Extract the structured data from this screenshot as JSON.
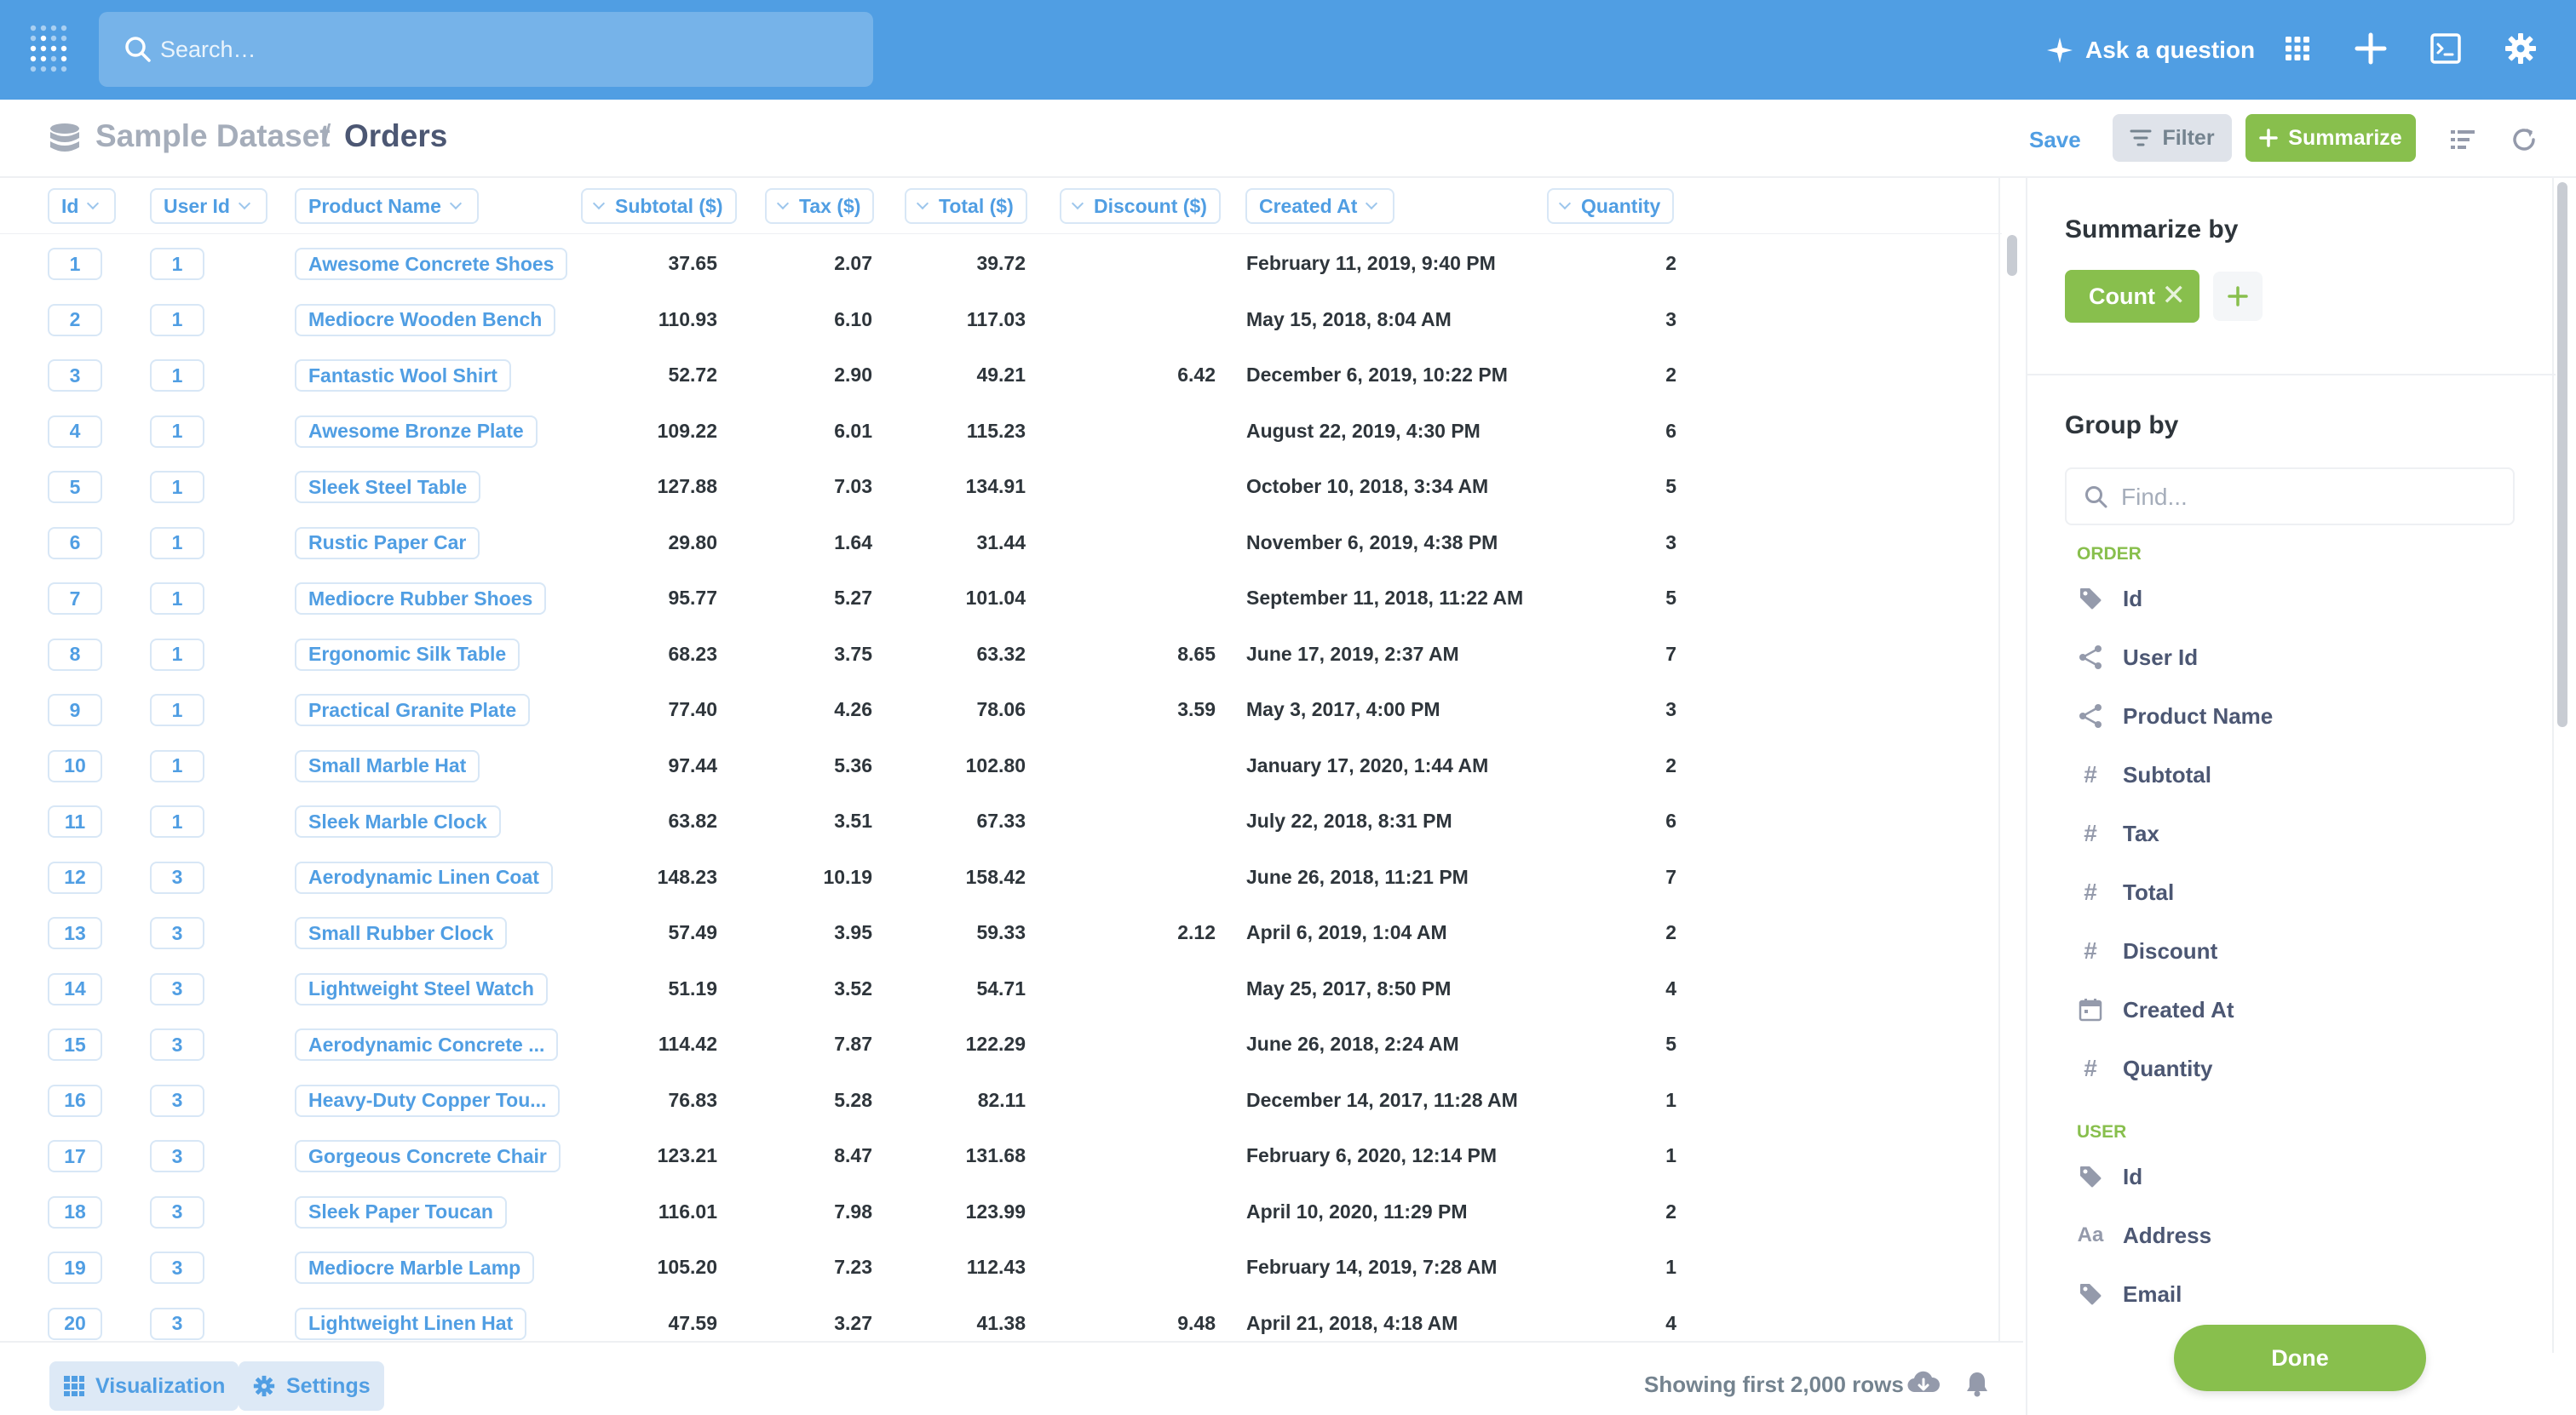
{
  "topnav": {
    "search_placeholder": "Search…",
    "ask_label": "Ask a question"
  },
  "header": {
    "database": "Sample Dataset",
    "separator": "/",
    "table": "Orders",
    "save_label": "Save",
    "filter_label": "Filter",
    "summarize_label": "Summarize"
  },
  "columns": {
    "id": "Id",
    "user_id": "User Id",
    "product_name": "Product Name",
    "subtotal": "Subtotal ($)",
    "tax": "Tax ($)",
    "total": "Total ($)",
    "discount": "Discount ($)",
    "created_at": "Created At",
    "quantity": "Quantity"
  },
  "rows": [
    {
      "id": "1",
      "user_id": "1",
      "product": "Awesome Concrete Shoes",
      "subtotal": "37.65",
      "tax": "2.07",
      "total": "39.72",
      "discount": "",
      "created": "February 11, 2019, 9:40 PM",
      "qty": "2"
    },
    {
      "id": "2",
      "user_id": "1",
      "product": "Mediocre Wooden Bench",
      "subtotal": "110.93",
      "tax": "6.10",
      "total": "117.03",
      "discount": "",
      "created": "May 15, 2018, 8:04 AM",
      "qty": "3"
    },
    {
      "id": "3",
      "user_id": "1",
      "product": "Fantastic Wool Shirt",
      "subtotal": "52.72",
      "tax": "2.90",
      "total": "49.21",
      "discount": "6.42",
      "created": "December 6, 2019, 10:22 PM",
      "qty": "2"
    },
    {
      "id": "4",
      "user_id": "1",
      "product": "Awesome Bronze Plate",
      "subtotal": "109.22",
      "tax": "6.01",
      "total": "115.23",
      "discount": "",
      "created": "August 22, 2019, 4:30 PM",
      "qty": "6"
    },
    {
      "id": "5",
      "user_id": "1",
      "product": "Sleek Steel Table",
      "subtotal": "127.88",
      "tax": "7.03",
      "total": "134.91",
      "discount": "",
      "created": "October 10, 2018, 3:34 AM",
      "qty": "5"
    },
    {
      "id": "6",
      "user_id": "1",
      "product": "Rustic Paper Car",
      "subtotal": "29.80",
      "tax": "1.64",
      "total": "31.44",
      "discount": "",
      "created": "November 6, 2019, 4:38 PM",
      "qty": "3"
    },
    {
      "id": "7",
      "user_id": "1",
      "product": "Mediocre Rubber Shoes",
      "subtotal": "95.77",
      "tax": "5.27",
      "total": "101.04",
      "discount": "",
      "created": "September 11, 2018, 11:22 AM",
      "qty": "5"
    },
    {
      "id": "8",
      "user_id": "1",
      "product": "Ergonomic Silk Table",
      "subtotal": "68.23",
      "tax": "3.75",
      "total": "63.32",
      "discount": "8.65",
      "created": "June 17, 2019, 2:37 AM",
      "qty": "7"
    },
    {
      "id": "9",
      "user_id": "1",
      "product": "Practical Granite Plate",
      "subtotal": "77.40",
      "tax": "4.26",
      "total": "78.06",
      "discount": "3.59",
      "created": "May 3, 2017, 4:00 PM",
      "qty": "3"
    },
    {
      "id": "10",
      "user_id": "1",
      "product": "Small Marble Hat",
      "subtotal": "97.44",
      "tax": "5.36",
      "total": "102.80",
      "discount": "",
      "created": "January 17, 2020, 1:44 AM",
      "qty": "2"
    },
    {
      "id": "11",
      "user_id": "1",
      "product": "Sleek Marble Clock",
      "subtotal": "63.82",
      "tax": "3.51",
      "total": "67.33",
      "discount": "",
      "created": "July 22, 2018, 8:31 PM",
      "qty": "6"
    },
    {
      "id": "12",
      "user_id": "3",
      "product": "Aerodynamic Linen Coat",
      "subtotal": "148.23",
      "tax": "10.19",
      "total": "158.42",
      "discount": "",
      "created": "June 26, 2018, 11:21 PM",
      "qty": "7"
    },
    {
      "id": "13",
      "user_id": "3",
      "product": "Small Rubber Clock",
      "subtotal": "57.49",
      "tax": "3.95",
      "total": "59.33",
      "discount": "2.12",
      "created": "April 6, 2019, 1:04 AM",
      "qty": "2"
    },
    {
      "id": "14",
      "user_id": "3",
      "product": "Lightweight Steel Watch",
      "subtotal": "51.19",
      "tax": "3.52",
      "total": "54.71",
      "discount": "",
      "created": "May 25, 2017, 8:50 PM",
      "qty": "4"
    },
    {
      "id": "15",
      "user_id": "3",
      "product": "Aerodynamic Concrete ...",
      "subtotal": "114.42",
      "tax": "7.87",
      "total": "122.29",
      "discount": "",
      "created": "June 26, 2018, 2:24 AM",
      "qty": "5"
    },
    {
      "id": "16",
      "user_id": "3",
      "product": "Heavy-Duty Copper Tou...",
      "subtotal": "76.83",
      "tax": "5.28",
      "total": "82.11",
      "discount": "",
      "created": "December 14, 2017, 11:28 AM",
      "qty": "1"
    },
    {
      "id": "17",
      "user_id": "3",
      "product": "Gorgeous Concrete Chair",
      "subtotal": "123.21",
      "tax": "8.47",
      "total": "131.68",
      "discount": "",
      "created": "February 6, 2020, 12:14 PM",
      "qty": "1"
    },
    {
      "id": "18",
      "user_id": "3",
      "product": "Sleek Paper Toucan",
      "subtotal": "116.01",
      "tax": "7.98",
      "total": "123.99",
      "discount": "",
      "created": "April 10, 2020, 11:29 PM",
      "qty": "2"
    },
    {
      "id": "19",
      "user_id": "3",
      "product": "Mediocre Marble Lamp",
      "subtotal": "105.20",
      "tax": "7.23",
      "total": "112.43",
      "discount": "",
      "created": "February 14, 2019, 7:28 AM",
      "qty": "1"
    },
    {
      "id": "20",
      "user_id": "3",
      "product": "Lightweight Linen Hat",
      "subtotal": "47.59",
      "tax": "3.27",
      "total": "41.38",
      "discount": "9.48",
      "created": "April 21, 2018, 4:18 AM",
      "qty": "4"
    }
  ],
  "footer": {
    "visualization_label": "Visualization",
    "settings_label": "Settings",
    "showing_text": "Showing first 2,000 rows"
  },
  "sidebar": {
    "summarize_title": "Summarize by",
    "metric_label": "Count",
    "metric_remove": "✕",
    "group_title": "Group by",
    "find_placeholder": "Find...",
    "sections": [
      {
        "title": "ORDER",
        "fields": [
          {
            "label": "Id",
            "icon": "tag-icon"
          },
          {
            "label": "User Id",
            "icon": "connections-icon"
          },
          {
            "label": "Product Name",
            "icon": "connections-icon"
          },
          {
            "label": "Subtotal",
            "icon": "hash-icon"
          },
          {
            "label": "Tax",
            "icon": "hash-icon"
          },
          {
            "label": "Total",
            "icon": "hash-icon"
          },
          {
            "label": "Discount",
            "icon": "hash-icon"
          },
          {
            "label": "Created At",
            "icon": "calendar-icon"
          },
          {
            "label": "Quantity",
            "icon": "hash-icon"
          }
        ]
      },
      {
        "title": "USER",
        "fields": [
          {
            "label": "Id",
            "icon": "tag-icon"
          },
          {
            "label": "Address",
            "icon": "text-icon"
          },
          {
            "label": "Email",
            "icon": "tag-icon"
          }
        ]
      }
    ],
    "done_label": "Done"
  },
  "colors": {
    "brand": "#509ee3",
    "summarize_green": "#88bf4d",
    "text_dark": "#2e353b",
    "text_medium": "#4c5773",
    "text_light": "#a5adba"
  }
}
